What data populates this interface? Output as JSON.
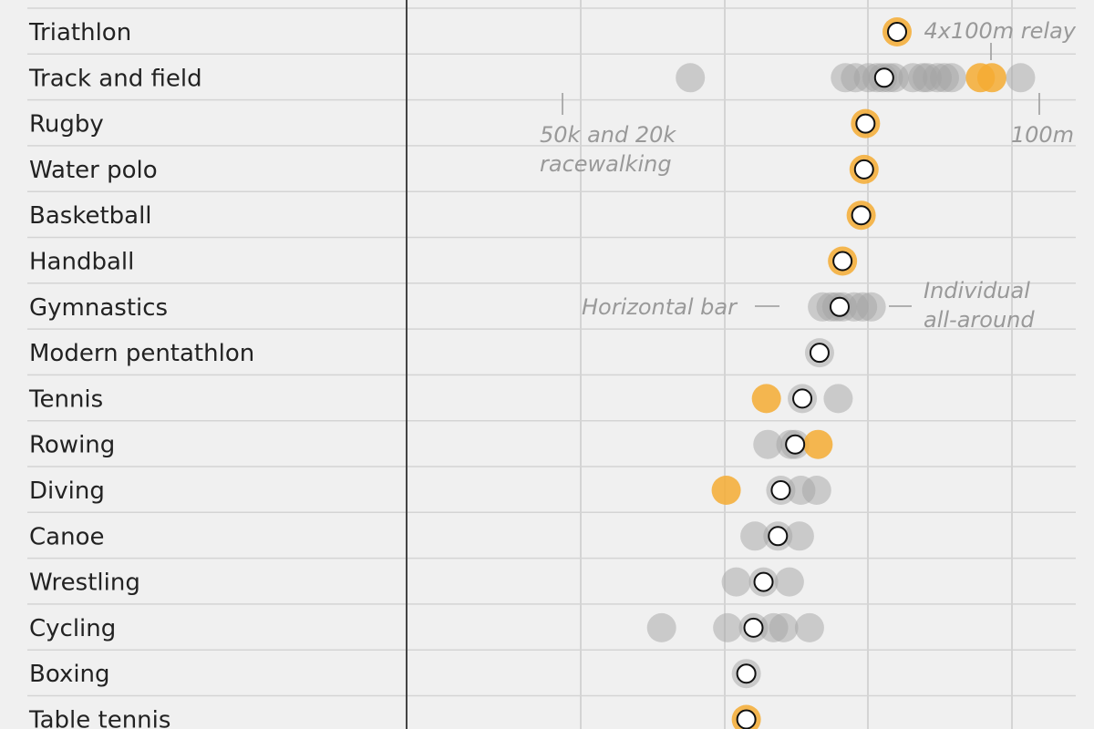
{
  "chart_data": {
    "type": "scatter",
    "title": "",
    "xlabel": "",
    "ylabel": "",
    "colors": {
      "background": "#f0f0f0",
      "event": "#a3a3a3",
      "highlight": "#f5ac33",
      "grid": "#d4d4d4",
      "row_line": "#d4d4d4",
      "axis": "#444444",
      "label": "#222222",
      "annotation": "#999999"
    },
    "rows": [
      {
        "sport": "Triathlon",
        "median": 0.6,
        "events": [
          {
            "x": 0.6,
            "highlight": true
          }
        ]
      },
      {
        "sport": "Track and field",
        "median": 0.555,
        "events": [
          {
            "x": -0.12,
            "highlight": false
          },
          {
            "x": 0.42,
            "highlight": false
          },
          {
            "x": 0.455,
            "highlight": false
          },
          {
            "x": 0.5,
            "highlight": false
          },
          {
            "x": 0.53,
            "highlight": false
          },
          {
            "x": 0.55,
            "highlight": false
          },
          {
            "x": 0.57,
            "highlight": false
          },
          {
            "x": 0.59,
            "highlight": false
          },
          {
            "x": 0.655,
            "highlight": false
          },
          {
            "x": 0.69,
            "highlight": false
          },
          {
            "x": 0.705,
            "highlight": false
          },
          {
            "x": 0.74,
            "highlight": false
          },
          {
            "x": 0.765,
            "highlight": false
          },
          {
            "x": 0.79,
            "highlight": false
          },
          {
            "x": 0.89,
            "highlight": true
          },
          {
            "x": 0.93,
            "highlight": true
          },
          {
            "x": 1.03,
            "highlight": false
          }
        ]
      },
      {
        "sport": "Rugby",
        "median": 0.49,
        "events": [
          {
            "x": 0.49,
            "highlight": true
          }
        ]
      },
      {
        "sport": "Water polo",
        "median": 0.485,
        "events": [
          {
            "x": 0.485,
            "highlight": true
          }
        ]
      },
      {
        "sport": "Basketball",
        "median": 0.475,
        "events": [
          {
            "x": 0.475,
            "highlight": true
          }
        ]
      },
      {
        "sport": "Handball",
        "median": 0.41,
        "events": [
          {
            "x": 0.41,
            "highlight": true
          }
        ]
      },
      {
        "sport": "Gymnastics",
        "median": 0.4,
        "events": [
          {
            "x": 0.34,
            "highlight": false
          },
          {
            "x": 0.37,
            "highlight": false
          },
          {
            "x": 0.39,
            "highlight": false
          },
          {
            "x": 0.41,
            "highlight": false
          },
          {
            "x": 0.45,
            "highlight": false
          },
          {
            "x": 0.48,
            "highlight": false
          },
          {
            "x": 0.51,
            "highlight": false
          }
        ]
      },
      {
        "sport": "Modern pentathlon",
        "median": 0.33,
        "events": [
          {
            "x": 0.33,
            "highlight": false
          }
        ]
      },
      {
        "sport": "Tennis",
        "median": 0.27,
        "events": [
          {
            "x": 0.145,
            "highlight": true
          },
          {
            "x": 0.27,
            "highlight": false
          },
          {
            "x": 0.395,
            "highlight": false
          }
        ]
      },
      {
        "sport": "Rowing",
        "median": 0.245,
        "events": [
          {
            "x": 0.15,
            "highlight": false
          },
          {
            "x": 0.23,
            "highlight": false
          },
          {
            "x": 0.245,
            "highlight": false
          },
          {
            "x": 0.325,
            "highlight": true
          }
        ]
      },
      {
        "sport": "Diving",
        "median": 0.195,
        "events": [
          {
            "x": 0.005,
            "highlight": true
          },
          {
            "x": 0.195,
            "highlight": false
          },
          {
            "x": 0.265,
            "highlight": false
          },
          {
            "x": 0.32,
            "highlight": false
          }
        ]
      },
      {
        "sport": "Canoe",
        "median": 0.185,
        "events": [
          {
            "x": 0.105,
            "highlight": false
          },
          {
            "x": 0.185,
            "highlight": false
          },
          {
            "x": 0.26,
            "highlight": false
          }
        ]
      },
      {
        "sport": "Wrestling",
        "median": 0.135,
        "events": [
          {
            "x": 0.04,
            "highlight": false
          },
          {
            "x": 0.135,
            "highlight": false
          },
          {
            "x": 0.225,
            "highlight": false
          }
        ]
      },
      {
        "sport": "Cycling",
        "median": 0.1,
        "events": [
          {
            "x": -0.22,
            "highlight": false
          },
          {
            "x": 0.01,
            "highlight": false
          },
          {
            "x": 0.1,
            "highlight": false
          },
          {
            "x": 0.17,
            "highlight": false
          },
          {
            "x": 0.205,
            "highlight": false
          },
          {
            "x": 0.295,
            "highlight": false
          }
        ]
      },
      {
        "sport": "Boxing",
        "median": 0.075,
        "events": [
          {
            "x": 0.075,
            "highlight": false
          }
        ]
      },
      {
        "sport": "Table tennis",
        "median": 0.075,
        "events": [
          {
            "x": 0.075,
            "highlight": true
          }
        ]
      }
    ],
    "annotations": [
      {
        "text": "4x100m relay",
        "row": "Track and field"
      },
      {
        "text": "50k and 20k",
        "row": "Track and field"
      },
      {
        "text": "racewalking",
        "row": "Track and field"
      },
      {
        "text": "100m",
        "row": "Track and field"
      },
      {
        "text": "Horizontal bar",
        "row": "Gymnastics"
      },
      {
        "text": "Individual",
        "row": "Gymnastics"
      },
      {
        "text": "all-around",
        "row": "Gymnastics"
      }
    ]
  }
}
